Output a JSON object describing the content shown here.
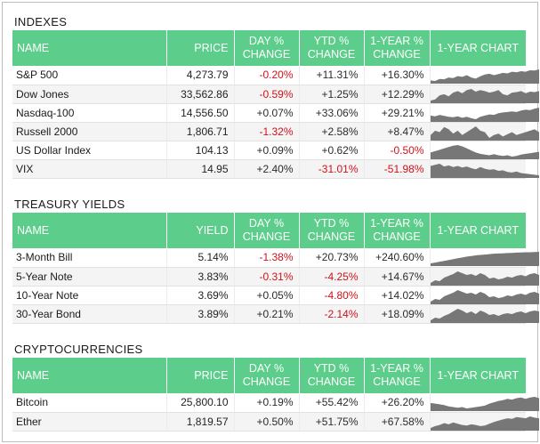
{
  "indexes": {
    "title": "INDEXES",
    "columns": [
      "NAME",
      "PRICE",
      "DAY %\nCHANGE",
      "YTD %\nCHANGE",
      "1-YEAR %\nCHANGE",
      "1-YEAR CHART"
    ],
    "rows": [
      {
        "name": "S&P 500",
        "value": "4,273.79",
        "day": "-0.20%",
        "ytd": "+11.31%",
        "yr": "+16.30%",
        "trend": [
          40,
          38,
          45,
          44,
          50,
          48,
          55,
          52,
          58,
          50,
          46,
          54,
          60,
          63,
          58,
          62,
          66,
          64,
          70,
          68,
          72,
          70,
          75,
          74,
          78
        ]
      },
      {
        "name": "Dow Jones",
        "value": "33,562.86",
        "day": "-0.59%",
        "ytd": "+1.25%",
        "yr": "+12.29%",
        "trend": [
          40,
          42,
          50,
          52,
          48,
          55,
          58,
          54,
          60,
          62,
          57,
          60,
          58,
          55,
          57,
          60,
          52,
          50,
          55,
          56,
          58,
          54,
          57,
          56,
          58
        ]
      },
      {
        "name": "Nasdaq-100",
        "value": "14,556.50",
        "day": "+0.07%",
        "ytd": "+33.06%",
        "yr": "+29.21%",
        "trend": [
          45,
          42,
          48,
          44,
          40,
          38,
          42,
          36,
          40,
          34,
          30,
          40,
          45,
          50,
          48,
          55,
          58,
          60,
          62,
          60,
          66,
          70,
          68,
          74,
          78
        ]
      },
      {
        "name": "Russell 2000",
        "value": "1,806.71",
        "day": "-1.32%",
        "ytd": "+2.58%",
        "yr": "+8.47%",
        "trend": [
          44,
          50,
          48,
          55,
          52,
          46,
          50,
          44,
          48,
          52,
          56,
          50,
          48,
          40,
          44,
          46,
          42,
          45,
          48,
          44,
          46,
          48,
          50,
          52,
          48
        ]
      },
      {
        "name": "US Dollar Index",
        "value": "104.13",
        "day": "+0.09%",
        "ytd": "+0.62%",
        "yr": "-0.50%",
        "trend": [
          50,
          54,
          58,
          62,
          66,
          70,
          72,
          68,
          62,
          56,
          50,
          46,
          44,
          42,
          45,
          42,
          40,
          42,
          38,
          40,
          44,
          46,
          48,
          50,
          52
        ]
      },
      {
        "name": "VIX",
        "value": "14.95",
        "day": "+2.40%",
        "ytd": "-31.01%",
        "yr": "-51.98%",
        "trend": [
          62,
          66,
          70,
          60,
          64,
          58,
          62,
          56,
          60,
          54,
          50,
          58,
          52,
          48,
          50,
          44,
          46,
          40,
          38,
          42,
          36,
          34,
          32,
          30,
          28
        ]
      }
    ]
  },
  "treasury": {
    "title": "TREASURY YIELDS",
    "columns": [
      "NAME",
      "YIELD",
      "DAY %\nCHANGE",
      "YTD %\nCHANGE",
      "1-YEAR %\nCHANGE",
      "1-YEAR CHART"
    ],
    "rows": [
      {
        "name": "3-Month Bill",
        "value": "5.14%",
        "day": "-1.38%",
        "ytd": "+20.73%",
        "yr": "+240.60%",
        "trend": [
          20,
          24,
          28,
          32,
          36,
          40,
          44,
          48,
          52,
          55,
          58,
          60,
          62,
          64,
          66,
          67,
          68,
          69,
          70,
          71,
          72,
          73,
          73,
          74,
          75
        ]
      },
      {
        "name": "5-Year Note",
        "value": "3.83%",
        "day": "-0.31%",
        "ytd": "-4.25%",
        "yr": "+14.67%",
        "trend": [
          40,
          46,
          44,
          52,
          56,
          60,
          66,
          62,
          58,
          60,
          56,
          62,
          58,
          50,
          52,
          48,
          50,
          54,
          52,
          56,
          58,
          55,
          60,
          62,
          58
        ]
      },
      {
        "name": "10-Year Note",
        "value": "3.69%",
        "day": "+0.05%",
        "ytd": "-4.80%",
        "yr": "+14.02%",
        "trend": [
          38,
          44,
          42,
          50,
          54,
          58,
          64,
          60,
          56,
          58,
          54,
          60,
          56,
          48,
          50,
          46,
          48,
          52,
          50,
          54,
          56,
          53,
          58,
          60,
          56
        ]
      },
      {
        "name": "30-Year Bond",
        "value": "3.89%",
        "day": "+0.21%",
        "ytd": "-2.14%",
        "yr": "+18.09%",
        "trend": [
          36,
          42,
          40,
          46,
          50,
          56,
          62,
          58,
          52,
          56,
          50,
          58,
          54,
          48,
          50,
          46,
          50,
          52,
          50,
          54,
          56,
          52,
          56,
          58,
          56
        ]
      }
    ]
  },
  "crypto": {
    "title": "CRYPTOCURRENCIES",
    "columns": [
      "NAME",
      "PRICE",
      "DAY %\nCHANGE",
      "YTD %\nCHANGE",
      "1-YEAR %\nCHANGE",
      "1-YEAR CHART"
    ],
    "rows": [
      {
        "name": "Bitcoin",
        "value": "25,800.10",
        "day": "+0.19%",
        "ytd": "+55.42%",
        "yr": "+26.20%",
        "trend": [
          50,
          48,
          46,
          44,
          40,
          38,
          36,
          38,
          34,
          36,
          38,
          40,
          42,
          48,
          52,
          56,
          58,
          62,
          60,
          64,
          66,
          62,
          66,
          68,
          64
        ]
      },
      {
        "name": "Ether",
        "value": "1,819.57",
        "day": "+0.50%",
        "ytd": "+51.75%",
        "yr": "+67.58%",
        "trend": [
          30,
          36,
          40,
          46,
          42,
          48,
          44,
          40,
          38,
          42,
          40,
          36,
          38,
          44,
          50,
          54,
          58,
          62,
          60,
          66,
          64,
          62,
          68,
          64,
          62
        ]
      }
    ]
  },
  "colors": {
    "header_green": "#5ccd8a",
    "negative": "#d0121b",
    "spark_fill": "#777777"
  }
}
